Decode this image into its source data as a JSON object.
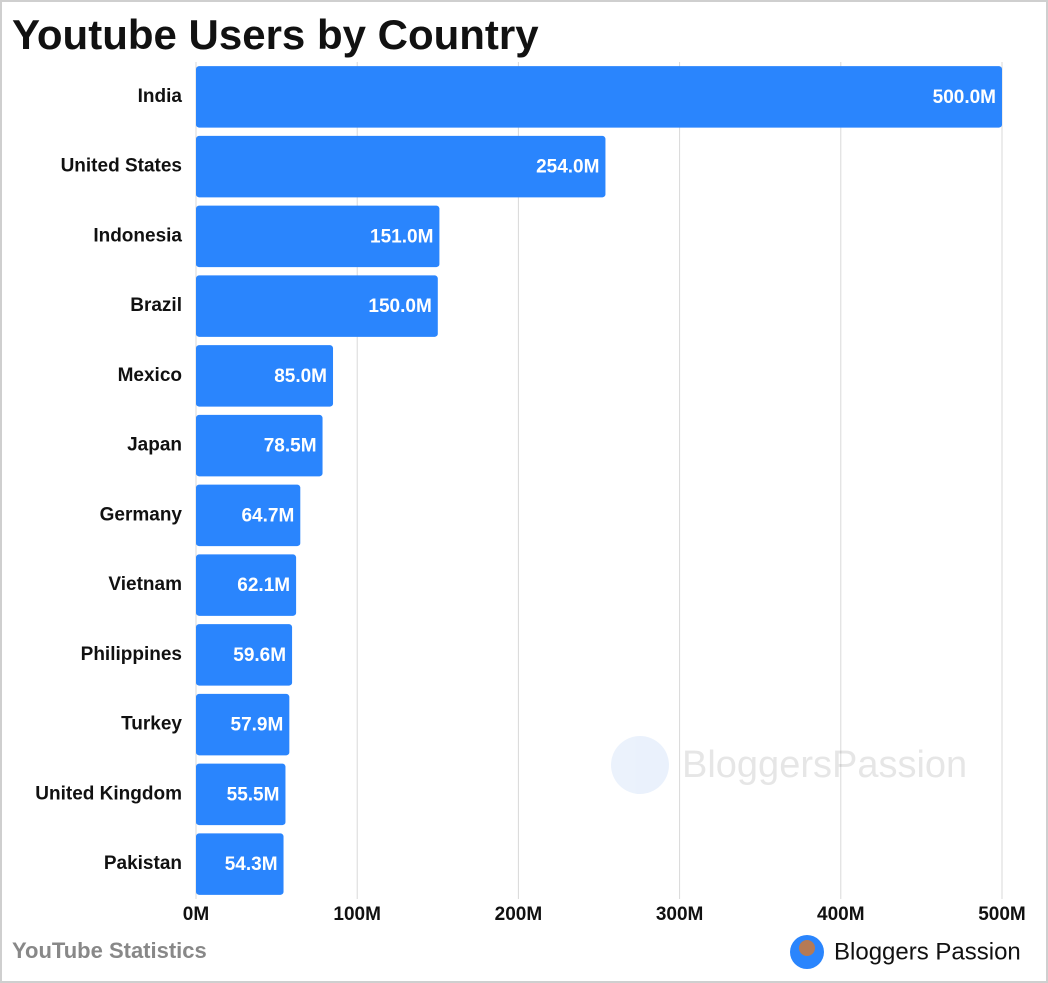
{
  "chart_data": {
    "type": "bar",
    "orientation": "horizontal",
    "title": "Youtube Users by Country",
    "categories": [
      "India",
      "United States",
      "Indonesia",
      "Brazil",
      "Mexico",
      "Japan",
      "Germany",
      "Vietnam",
      "Philippines",
      "Turkey",
      "United Kingdom",
      "Pakistan"
    ],
    "values": [
      500.0,
      254.0,
      151.0,
      150.0,
      85.0,
      78.5,
      64.7,
      62.1,
      59.6,
      57.9,
      55.5,
      54.3
    ],
    "value_labels": [
      "500.0M",
      "254.0M",
      "151.0M",
      "150.0M",
      "85.0M",
      "78.5M",
      "64.7M",
      "62.1M",
      "59.6M",
      "57.9M",
      "55.5M",
      "54.3M"
    ],
    "color": "#2a85fd",
    "xlim": [
      0,
      500
    ],
    "xticks": [
      {
        "value": 0,
        "label": "0M"
      },
      {
        "value": 100,
        "label": "100M"
      },
      {
        "value": 200,
        "label": "200M"
      },
      {
        "value": 300,
        "label": "300M"
      },
      {
        "value": 400,
        "label": "400M"
      },
      {
        "value": 500,
        "label": "500M"
      }
    ],
    "grid": true,
    "source": "YouTube Statistics",
    "brand": "Bloggers Passion",
    "watermark": "BloggersPassion"
  }
}
